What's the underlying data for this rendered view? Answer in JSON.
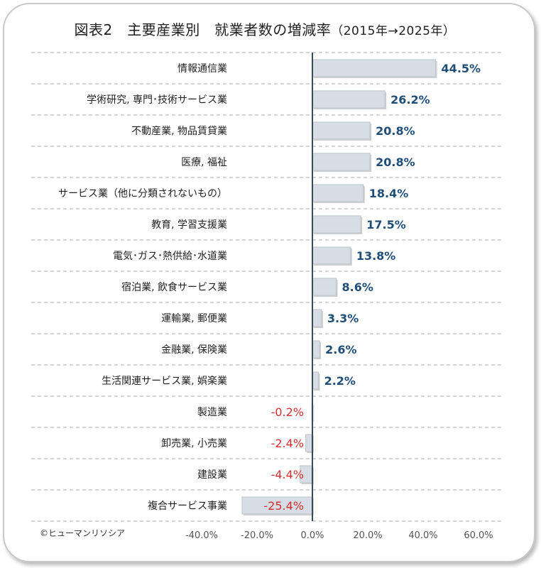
{
  "chart_data": {
    "type": "bar",
    "orientation": "horizontal",
    "title": "図表2　主要産業別　就業者数の増減率",
    "subtitle": "（2015年→2025年）",
    "categories": [
      "情報通信業",
      "学術研究, 専門･技術サービス業",
      "不動産業, 物品賃貸業",
      "医療, 福祉",
      "サービス業（他に分類されないもの）",
      "教育, 学習支援業",
      "電気･ガス･熱供給･水道業",
      "宿泊業, 飲食サービス業",
      "運輸業, 郵便業",
      "金融業, 保険業",
      "生活関連サービス業, 娯楽業",
      "製造業",
      "卸売業, 小売業",
      "建設業",
      "複合サービス事業"
    ],
    "values": [
      44.5,
      26.2,
      20.8,
      20.8,
      18.4,
      17.5,
      13.8,
      8.6,
      3.3,
      2.6,
      2.2,
      -0.2,
      -2.4,
      -4.4,
      -25.4
    ],
    "value_labels": [
      "44.5%",
      "26.2%",
      "20.8%",
      "20.8%",
      "18.4%",
      "17.5%",
      "13.8%",
      "8.6%",
      "3.3%",
      "2.6%",
      "2.2%",
      "-0.2%",
      "-2.4%",
      "-4.4%",
      "-25.4%"
    ],
    "x_ticks": [
      -40,
      -20,
      0,
      20,
      40,
      60
    ],
    "x_tick_labels": [
      "-40.0%",
      "-20.0%",
      "0.0%",
      "20.0%",
      "40.0%",
      "60.0%"
    ],
    "xlim": [
      -50,
      60
    ],
    "grid": "horizontal dashed",
    "colors": {
      "bar": "#d6dde4",
      "bar_edge": "#b9c3cc",
      "positive_label": "#1f4e79",
      "negative_label": "#d32f2f",
      "axis": "#3a4a5a",
      "grid": "#a9a9a9"
    }
  },
  "source": "©ヒューマンリソシア"
}
